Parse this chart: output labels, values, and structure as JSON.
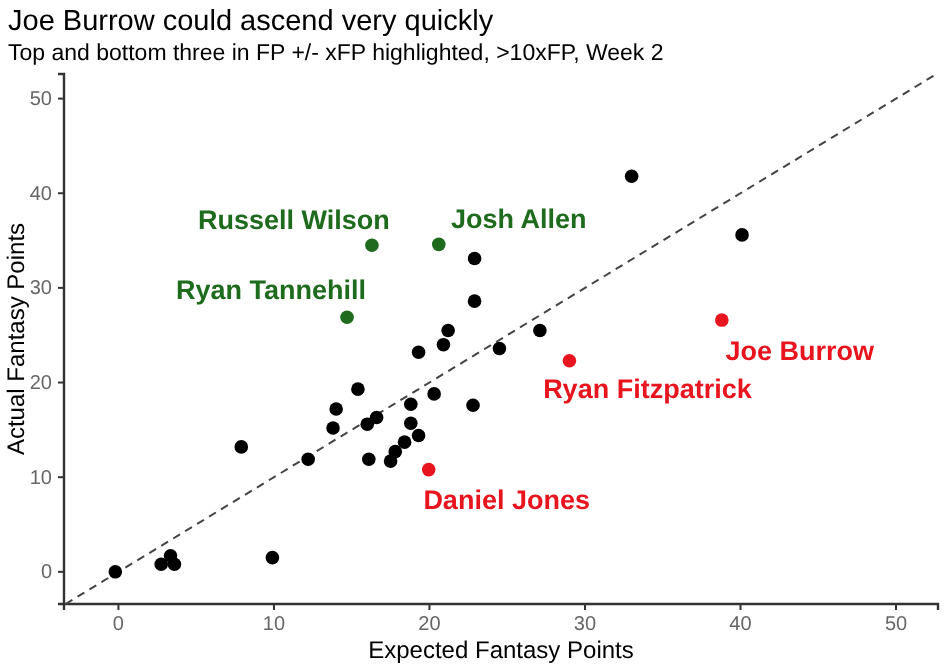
{
  "chart_data": {
    "type": "scatter",
    "title": "Joe Burrow could ascend very quickly",
    "subtitle": "Top and bottom three in FP +/- xFP highlighted, >10xFP, Week 2",
    "xlabel": "Expected Fantasy Points",
    "ylabel": "Actual Fantasy Points",
    "xlim": [
      -3.5,
      52.7
    ],
    "ylim": [
      -3.4,
      52.6
    ],
    "xticks": [
      0,
      10,
      20,
      30,
      40,
      50
    ],
    "yticks": [
      0,
      10,
      20,
      30,
      40,
      50
    ],
    "grid": false,
    "series": [
      {
        "type": "line",
        "color": "#444444",
        "line_style": "dashed",
        "x": [
          -3.4,
          52.6
        ],
        "values": [
          -3.4,
          52.6
        ]
      },
      {
        "color": "#000000",
        "x": [
          -0.2,
          2.75,
          3.35,
          3.6,
          9.9,
          7.9,
          12.2,
          13.8,
          14.0,
          15.4,
          16.0,
          16.1,
          16.6,
          17.5,
          17.8,
          18.4,
          18.8,
          18.8,
          19.3,
          19.3,
          20.3,
          20.9,
          22.8,
          24.5,
          33.0,
          40.1,
          22.9,
          22.9,
          21.2,
          27.1
        ],
        "values": [
          0,
          0.8,
          1.7,
          0.8,
          1.5,
          13.2,
          11.9,
          15.2,
          17.2,
          19.3,
          15.6,
          11.9,
          16.3,
          11.7,
          12.7,
          13.7,
          17.7,
          15.7,
          14.4,
          23.2,
          18.8,
          24.0,
          17.6,
          23.6,
          41.8,
          35.6,
          33.1,
          28.6,
          25.5,
          25.5
        ]
      },
      {
        "color": "#1e6b1e",
        "x": [
          16.3,
          20.6,
          14.7
        ],
        "values": [
          34.5,
          34.6,
          26.9
        ]
      },
      {
        "color": "#e8141e",
        "x": [
          38.8,
          29.0,
          19.95
        ],
        "values": [
          26.6,
          22.3,
          10.8
        ]
      }
    ],
    "annotations": [
      {
        "text": "Russell Wilson",
        "x": 16.3,
        "y": 34.5
      },
      {
        "text": "Josh Allen",
        "x": 20.6,
        "y": 34.6
      },
      {
        "text": "Ryan Tannehill",
        "x": 14.7,
        "y": 26.9
      },
      {
        "text": "Joe Burrow",
        "x": 38.8,
        "y": 26.6
      },
      {
        "text": "Ryan Fitzpatrick",
        "x": 29.0,
        "y": 22.3
      },
      {
        "text": "Daniel Jones",
        "x": 19.95,
        "y": 10.8
      }
    ]
  }
}
